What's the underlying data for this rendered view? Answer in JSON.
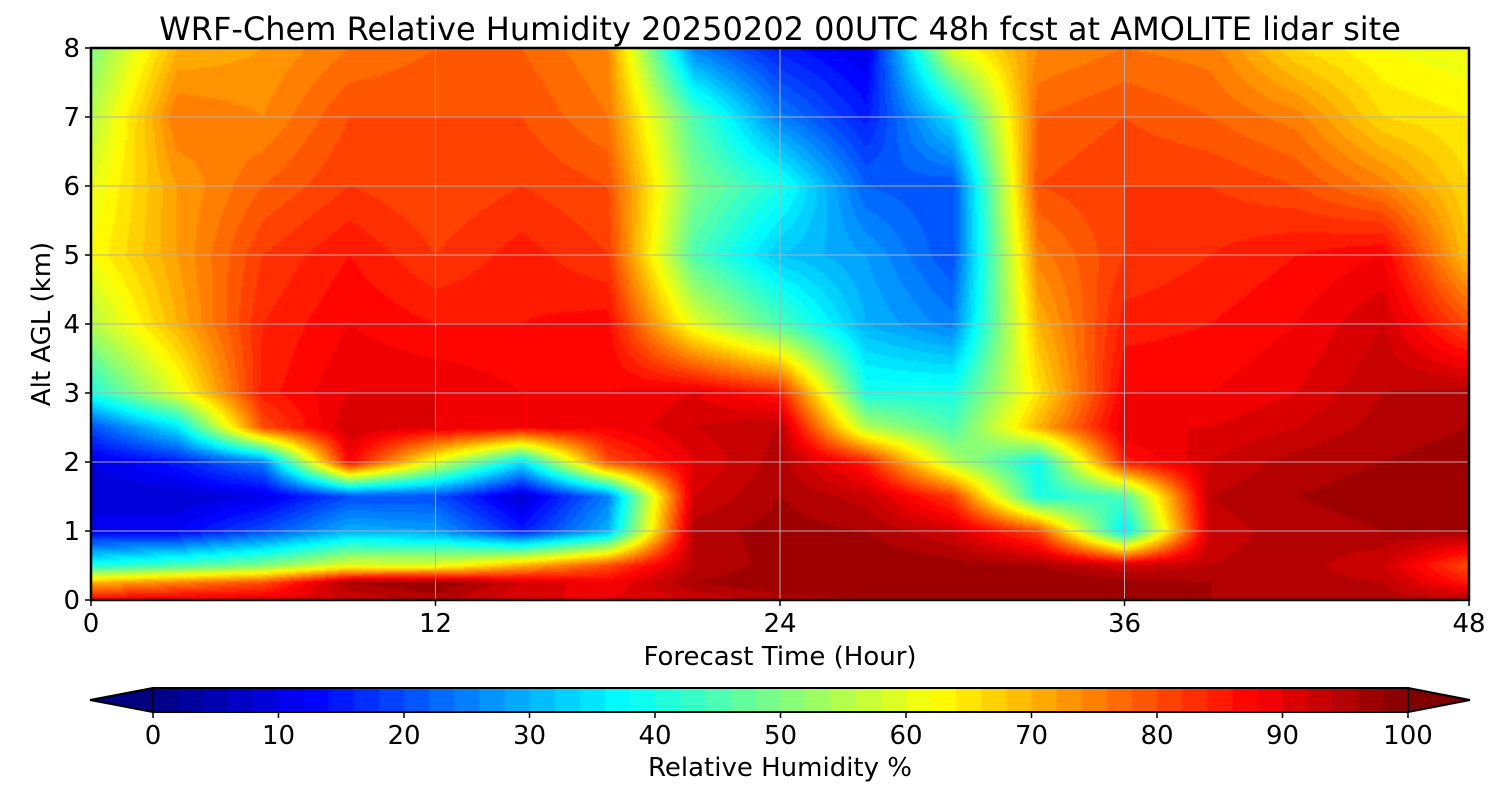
{
  "chart_data": {
    "type": "heatmap",
    "title": "WRF-Chem Relative Humidity 20250202 00UTC 48h fcst at AMOLITE lidar site",
    "xlabel": "Forecast Time (Hour)",
    "ylabel": "Alt AGL (km)",
    "xlim": [
      0,
      48
    ],
    "ylim": [
      0,
      8
    ],
    "x_ticks": [
      "0",
      "12",
      "24",
      "36",
      "48"
    ],
    "y_ticks": [
      "0",
      "1",
      "2",
      "3",
      "4",
      "5",
      "6",
      "7",
      "8"
    ],
    "grid": true,
    "colormap": "jet",
    "colorbar": {
      "label": "Relative Humidity %",
      "orientation": "horizontal",
      "range": [
        0,
        100
      ],
      "extend": "both",
      "ticks": [
        "0",
        "10",
        "20",
        "30",
        "40",
        "50",
        "60",
        "70",
        "80",
        "90",
        "100"
      ]
    },
    "x_hours": [
      0,
      3,
      6,
      9,
      12,
      15,
      18,
      21,
      24,
      27,
      30,
      33,
      36,
      39,
      42,
      45,
      48
    ],
    "y_km": [
      0,
      0.25,
      0.5,
      1,
      1.5,
      2,
      2.5,
      3,
      4,
      5,
      6,
      7,
      8
    ],
    "rh_percent": [
      [
        88,
        90,
        90,
        92,
        95,
        90,
        90,
        92,
        95,
        96,
        97,
        97,
        97,
        96,
        95,
        95,
        95
      ],
      [
        70,
        75,
        80,
        96,
        98,
        92,
        88,
        96,
        98,
        98,
        98,
        98,
        97,
        96,
        95,
        94,
        85
      ],
      [
        40,
        45,
        50,
        60,
        60,
        70,
        80,
        94,
        97,
        98,
        97,
        96,
        92,
        94,
        95,
        92,
        80
      ],
      [
        12,
        12,
        20,
        30,
        28,
        15,
        30,
        95,
        97,
        96,
        92,
        80,
        35,
        93,
        95,
        96,
        96
      ],
      [
        8,
        8,
        10,
        20,
        20,
        8,
        25,
        92,
        96,
        93,
        82,
        40,
        45,
        94,
        96,
        97,
        97
      ],
      [
        10,
        15,
        25,
        88,
        60,
        35,
        80,
        90,
        95,
        85,
        55,
        38,
        85,
        92,
        95,
        96,
        97
      ],
      [
        20,
        35,
        80,
        92,
        90,
        88,
        88,
        92,
        94,
        55,
        45,
        70,
        90,
        90,
        92,
        95,
        96
      ],
      [
        40,
        60,
        85,
        90,
        90,
        88,
        88,
        90,
        85,
        40,
        40,
        65,
        88,
        88,
        90,
        94,
        95
      ],
      [
        55,
        70,
        84,
        88,
        86,
        86,
        87,
        60,
        45,
        30,
        25,
        70,
        85,
        86,
        88,
        92,
        80
      ],
      [
        62,
        72,
        82,
        86,
        82,
        85,
        82,
        45,
        32,
        28,
        20,
        75,
        82,
        84,
        86,
        88,
        68
      ],
      [
        60,
        72,
        78,
        82,
        80,
        82,
        80,
        50,
        40,
        22,
        20,
        80,
        82,
        82,
        80,
        75,
        66
      ],
      [
        55,
        76,
        74,
        80,
        80,
        80,
        76,
        45,
        25,
        15,
        35,
        78,
        80,
        78,
        75,
        66,
        64
      ],
      [
        50,
        70,
        72,
        76,
        78,
        78,
        74,
        25,
        15,
        10,
        60,
        74,
        76,
        75,
        66,
        62,
        60
      ]
    ],
    "colors": {
      "axis": "#000000",
      "grid": "#b0b0b0"
    }
  }
}
